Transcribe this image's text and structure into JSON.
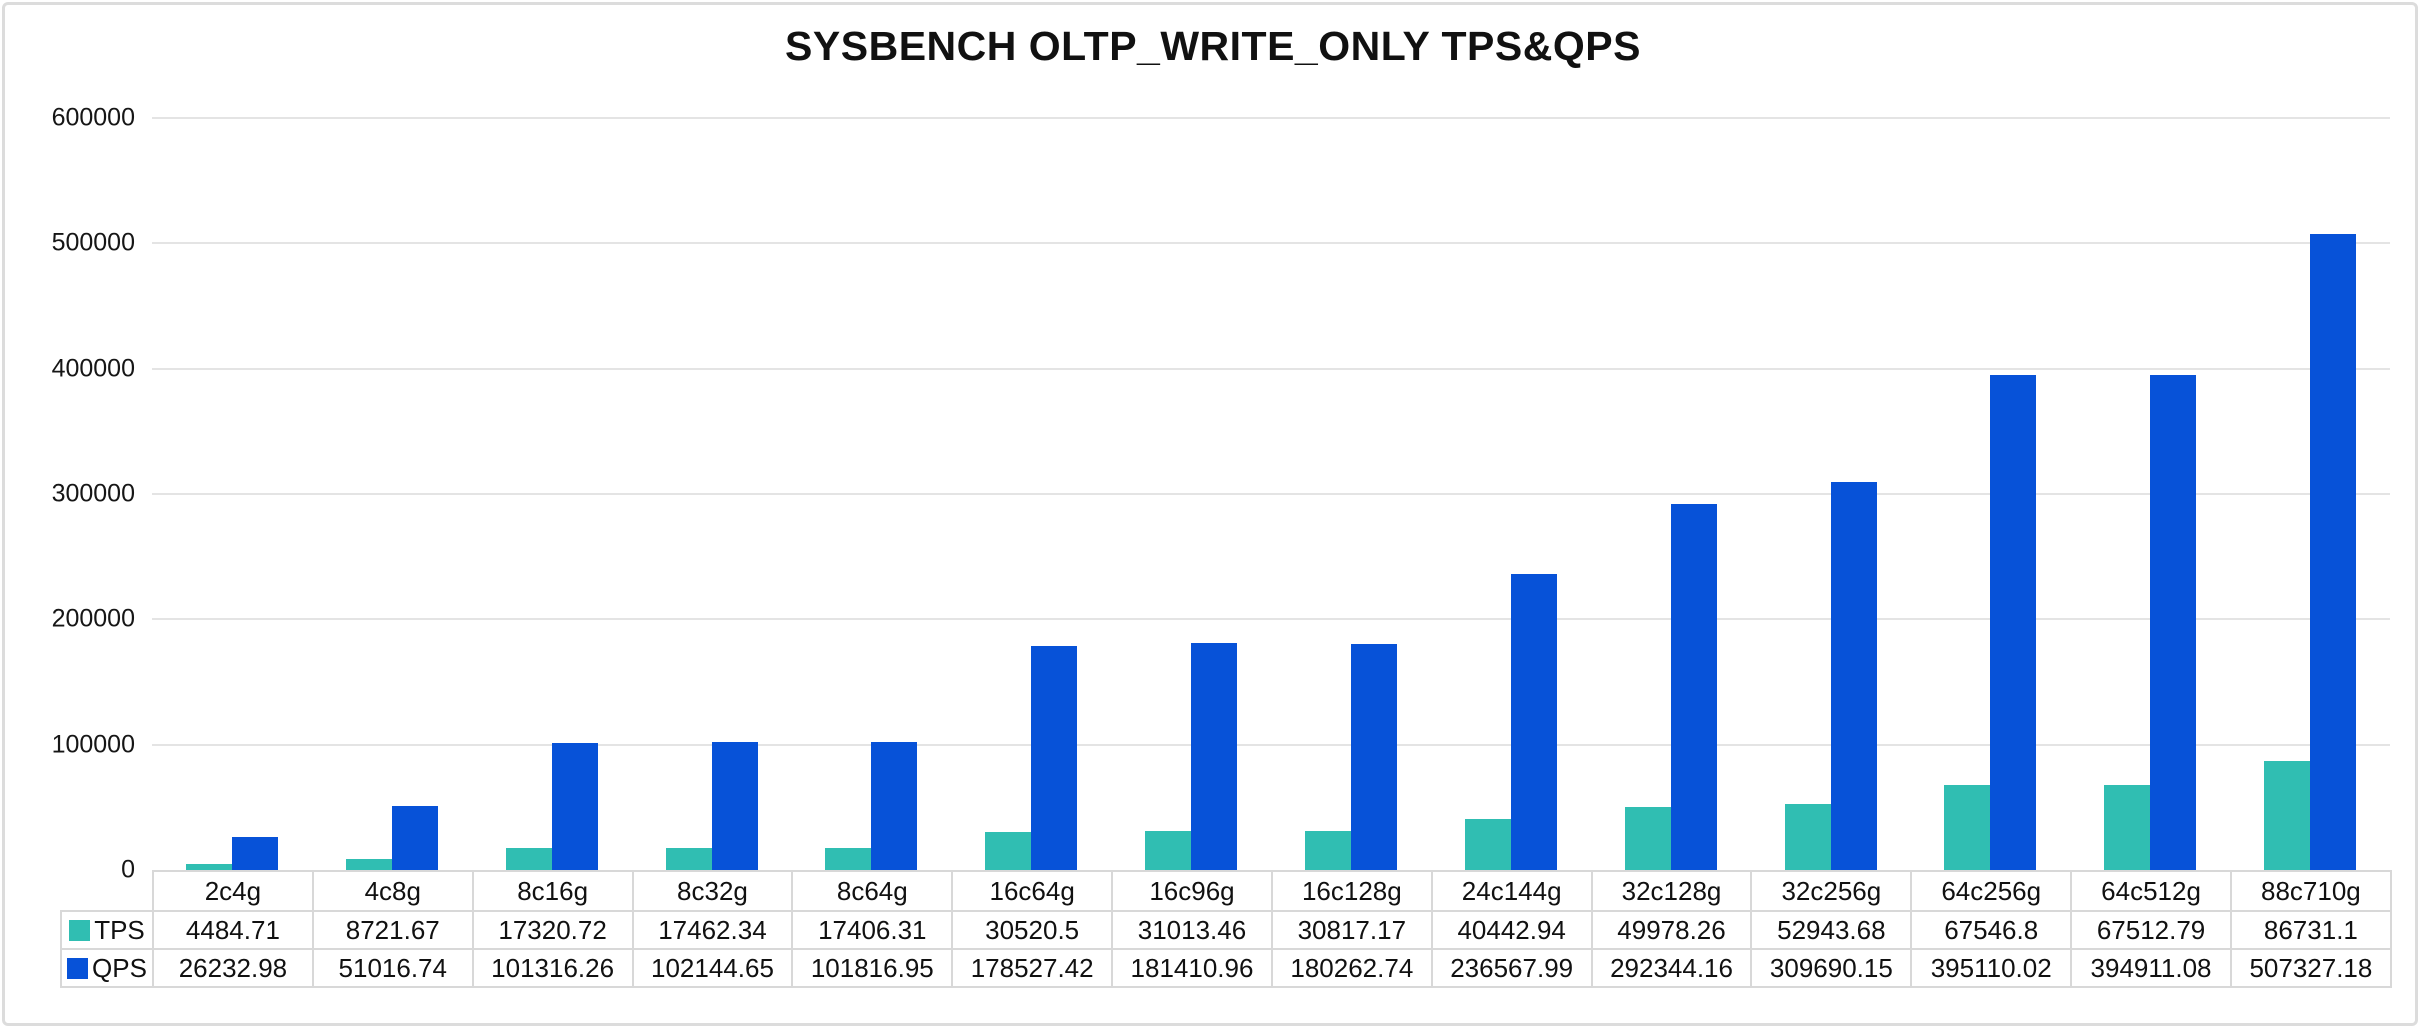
{
  "chart_data": {
    "type": "bar",
    "title": "SYSBENCH OLTP_WRITE_ONLY TPS&QPS",
    "categories": [
      "2c4g",
      "4c8g",
      "8c16g",
      "8c32g",
      "8c64g",
      "16c64g",
      "16c96g",
      "16c128g",
      "24c144g",
      "32c128g",
      "32c256g",
      "64c256g",
      "64c512g",
      "88c710g"
    ],
    "series": [
      {
        "name": "TPS",
        "color": "#30beb2",
        "values": [
          4484.71,
          8721.67,
          17320.72,
          17462.34,
          17406.31,
          30520.5,
          31013.46,
          30817.17,
          40442.94,
          49978.26,
          52943.68,
          67546.8,
          67512.79,
          86731.1
        ]
      },
      {
        "name": "QPS",
        "color": "#0752d8",
        "values": [
          26232.98,
          51016.74,
          101316.26,
          102144.65,
          101816.95,
          178527.42,
          181410.96,
          180262.74,
          236567.99,
          292344.16,
          309690.15,
          395110.02,
          394911.08,
          507327.18
        ]
      }
    ],
    "xlabel": "",
    "ylabel": "",
    "ylim": [
      0,
      600000
    ],
    "ytick_step": 100000,
    "ytick_labels": [
      "600000",
      "500000",
      "400000",
      "300000",
      "200000",
      "100000",
      "0"
    ],
    "grid": true,
    "gridline_color": "#e4e4e4",
    "legend_position": "table-left",
    "legend_labels": [
      "TPS",
      "QPS"
    ]
  }
}
